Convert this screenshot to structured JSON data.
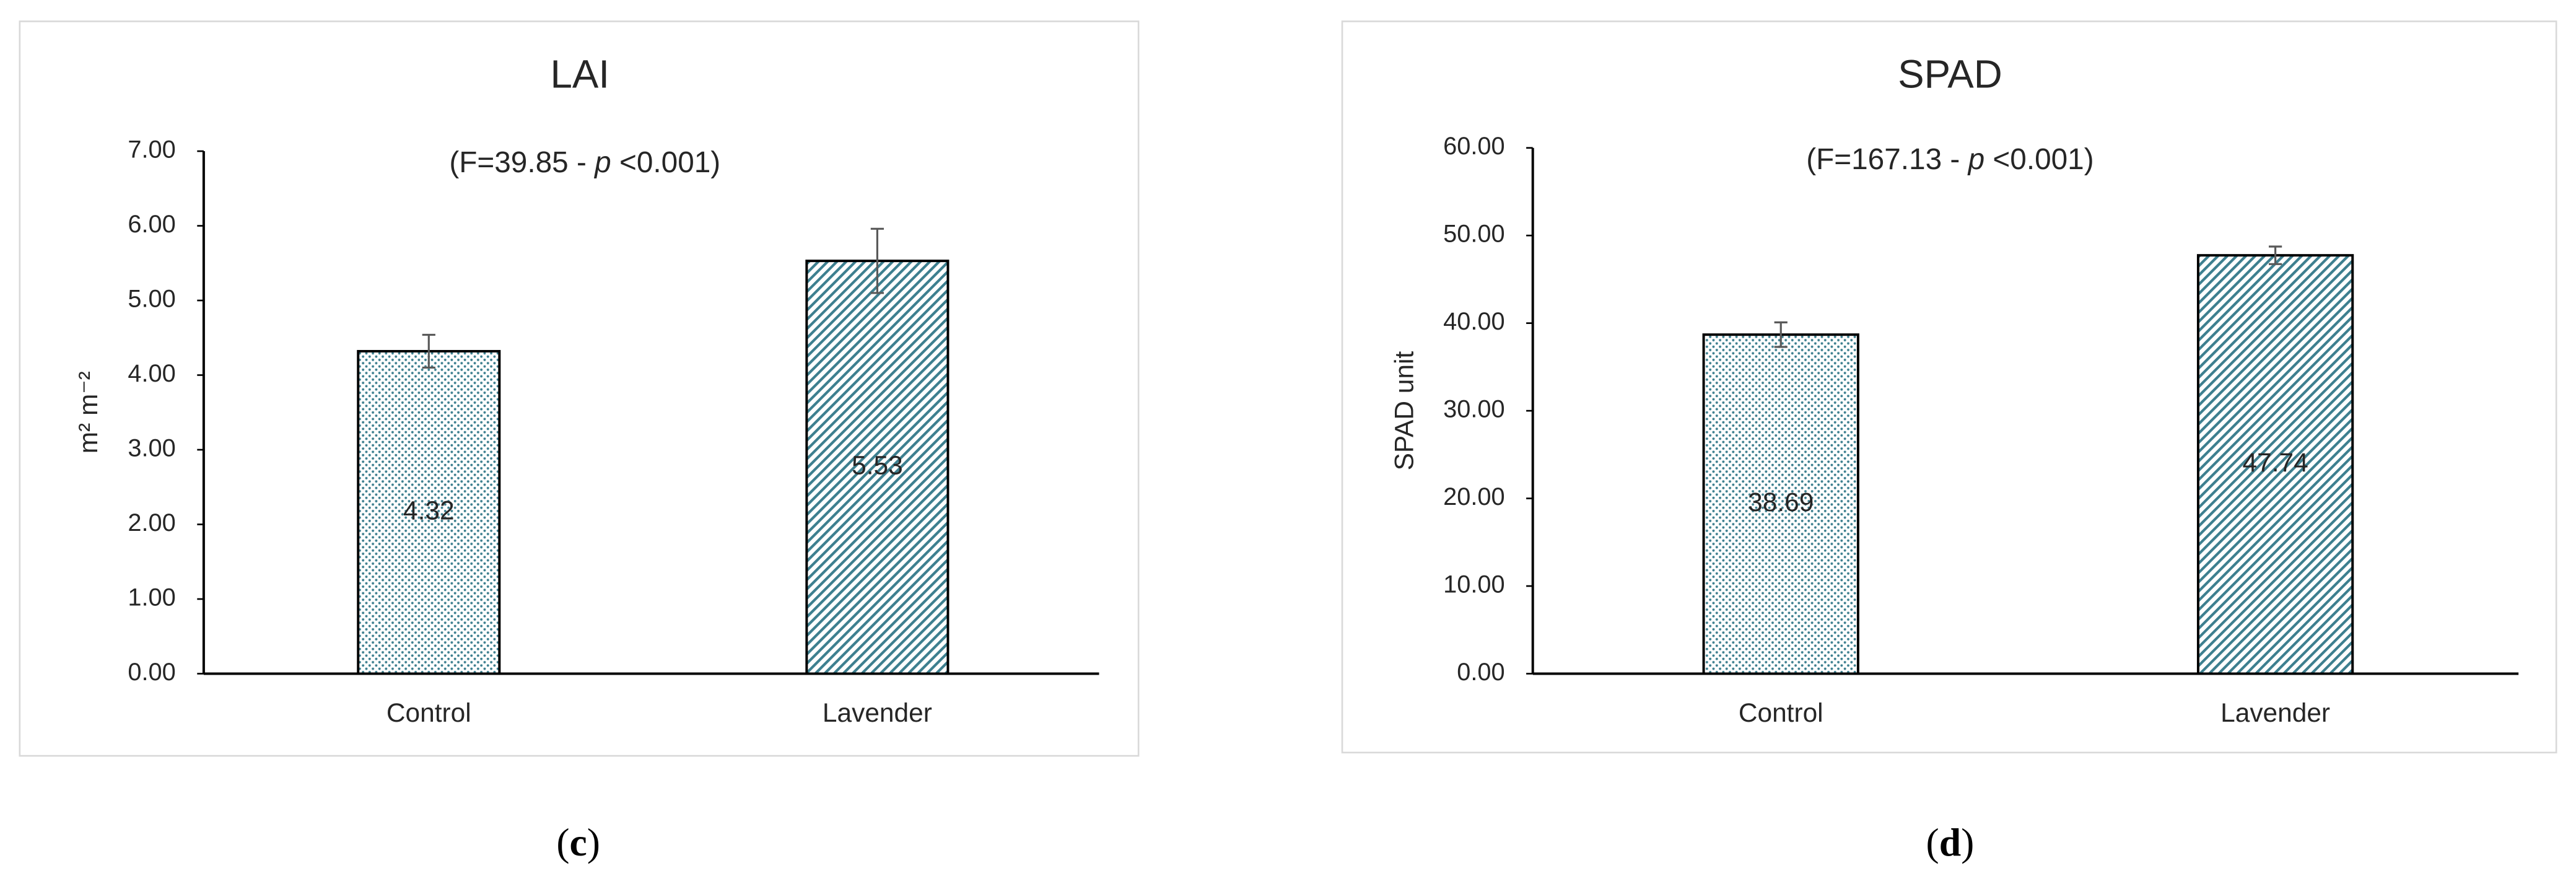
{
  "chart_data": [
    {
      "type": "bar",
      "title": "LAI",
      "annotation_parts": [
        "(F=39.85 - ",
        "p",
        " <0.001)"
      ],
      "y_label": "m² m⁻²",
      "categories": [
        "Control",
        "Lavender"
      ],
      "values": [
        4.32,
        5.53
      ],
      "errors": [
        0.22,
        0.43
      ],
      "patterns": [
        "dots",
        "hatch"
      ],
      "color": "#3d7f8f",
      "ylim": [
        0,
        7
      ],
      "yticks": [
        {
          "value": 0,
          "label": "0.00"
        },
        {
          "value": 1,
          "label": "1.00"
        },
        {
          "value": 2,
          "label": "2.00"
        },
        {
          "value": 3,
          "label": "3.00"
        },
        {
          "value": 4,
          "label": "4.00"
        },
        {
          "value": 5,
          "label": "5.00"
        },
        {
          "value": 6,
          "label": "6.00"
        },
        {
          "value": 7,
          "label": "7.00"
        }
      ],
      "panel_label_parts": [
        "(",
        "c",
        ")"
      ]
    },
    {
      "type": "bar",
      "title": "SPAD",
      "annotation_parts": [
        "(F=167.13 - ",
        "p",
        " <0.001)"
      ],
      "y_label": "SPAD unit",
      "categories": [
        "Control",
        "Lavender"
      ],
      "values": [
        38.69,
        47.74
      ],
      "errors": [
        1.4,
        1.0
      ],
      "patterns": [
        "dots",
        "hatch"
      ],
      "color": "#3d7f8f",
      "ylim": [
        0,
        60
      ],
      "yticks": [
        {
          "value": 0,
          "label": "0.00"
        },
        {
          "value": 10,
          "label": "10.00"
        },
        {
          "value": 20,
          "label": "20.00"
        },
        {
          "value": 30,
          "label": "30.00"
        },
        {
          "value": 40,
          "label": "40.00"
        },
        {
          "value": 50,
          "label": "50.00"
        },
        {
          "value": 60,
          "label": "60.00"
        }
      ],
      "panel_label_parts": [
        "(",
        "d",
        ")"
      ]
    }
  ]
}
